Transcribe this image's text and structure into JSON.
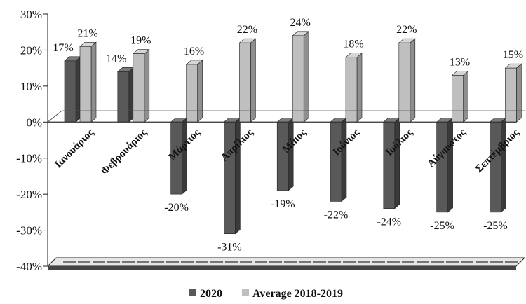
{
  "chart_data": {
    "type": "bar",
    "categories": [
      "Ιανουάριος",
      "Φεβρουάριος",
      "Μάρτιος",
      "Απρίλιος",
      "Μάιος",
      "Ιούνιος",
      "Ιούλιος",
      "Αύγουστος",
      "Σεπτέμβριος"
    ],
    "series": [
      {
        "name": "2020",
        "values": [
          17,
          14,
          -20,
          -31,
          -19,
          -22,
          -24,
          -25,
          -25
        ],
        "color": "#595959"
      },
      {
        "name": "Average 2018-2019",
        "values": [
          21,
          19,
          16,
          22,
          24,
          18,
          22,
          13,
          15
        ],
        "color": "#bfbfbf"
      }
    ],
    "data_labels": {
      "2020": [
        "17%",
        "14%",
        "-20%",
        "-31%",
        "-19%",
        "-22%",
        "-24%",
        "-25%",
        "-25%"
      ],
      "Average 2018-2019": [
        "21%",
        "19%",
        "16%",
        "22%",
        "24%",
        "18%",
        "22%",
        "13%",
        "15%"
      ]
    },
    "ylim": [
      -40,
      30
    ],
    "yticks": [
      30,
      20,
      10,
      0,
      -10,
      -20,
      -30,
      -40
    ],
    "ytick_labels": [
      "30%",
      "20%",
      "10%",
      "0%",
      "-10%",
      "-20%",
      "-30%",
      "-40%"
    ],
    "title": "",
    "xlabel": "",
    "ylabel": "",
    "grid": false,
    "legend_position": "bottom"
  }
}
